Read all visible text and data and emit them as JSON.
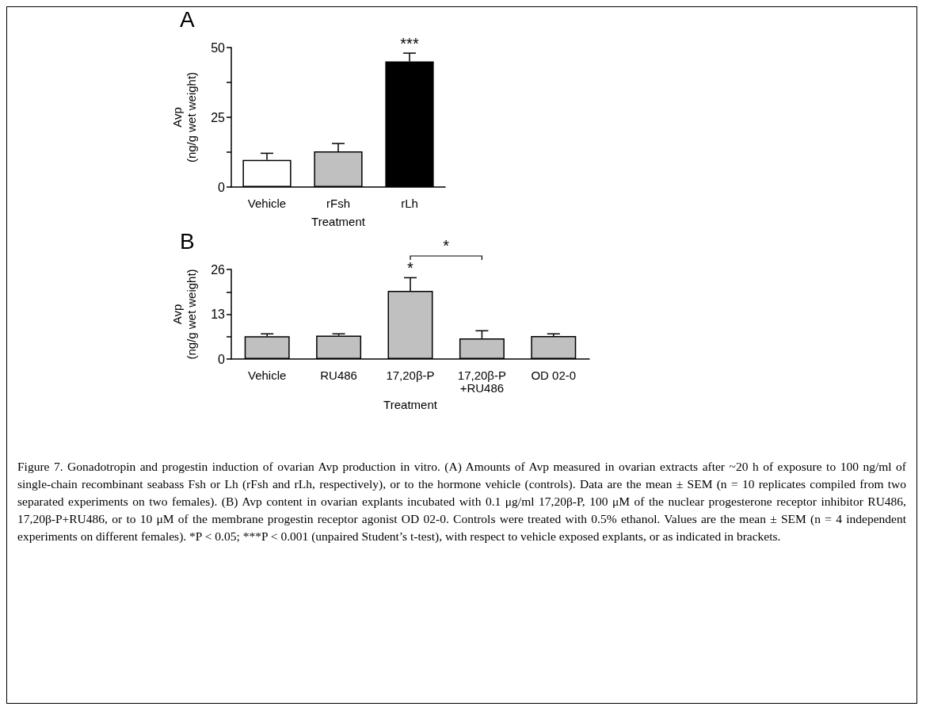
{
  "chart_data": [
    {
      "type": "bar",
      "title": "A",
      "xlabel": "Treatment",
      "ylabel": "Avp\n(ng/g wet weight)",
      "categories": [
        "Vehicle",
        "rFsh",
        "rLh"
      ],
      "values": [
        9.7,
        12.8,
        45
      ],
      "errors": [
        2.4,
        2.8,
        3
      ],
      "colors": [
        "#ffffff",
        "#c0c0c0",
        "#000000"
      ],
      "ylim": [
        0,
        50
      ],
      "yticks": [
        0,
        {
          "value": 12.5,
          "label": null
        },
        25,
        {
          "value": 37.5,
          "label": null
        },
        50
      ],
      "grid": false,
      "annotations": [
        {
          "text": "***",
          "x": "rLh",
          "y": 48
        }
      ]
    },
    {
      "type": "bar",
      "title": "B",
      "xlabel": "Treatment",
      "ylabel": "Avp\n(ng/g wet weight)",
      "categories": [
        "Vehicle",
        "RU486",
        "17,20β-P",
        "17,20β-P\n+RU486",
        "OD 02-0"
      ],
      "values": [
        6.6,
        6.8,
        19.8,
        6,
        6.7
      ],
      "errors": [
        0.7,
        0.5,
        3.8,
        2.2,
        0.6
      ],
      "color": "#c0c0c0",
      "ylim": [
        0,
        26
      ],
      "yticks": [
        0,
        {
          "value": 6.5,
          "label": null
        },
        13,
        {
          "value": 19.5,
          "label": null
        },
        26
      ],
      "grid": false,
      "annotations": [
        {
          "text": "*",
          "x": "17,20β-P",
          "y": 23.6
        },
        "*",
        "Figure 7. Gonadotropin and progestin induction of ovarian Avp production in vitro. (A) Amounts of Avp measured in ovarian extracts after ~20 h of exposure to 100 ng/ml of single-chain recombinant seabass Fsh or Lh (rFsh and rLh, respectively), or to the hormone vehicle (controls). Data are the mean ± SEM (n = 10 replicates compiled from two separated experiments on two females). (B) Avp content in ovarian explants incubated with 0.1 μg/ml 17,20β-P, 100 μM of the nuclear progesterone receptor inhibitor RU486, 17,20β-P+RU486, or to 10 μM of the membrane progestin receptor agonist OD 02-0. Controls were treated with 0.5% ethanol. Values are the mean ± SEM (n = 4 independent experiments on different females). *P < 0.05; ***P < 0.001 (unpaired Student’s t-test), with respect to vehicle exposed explants, or as indicated in brackets."
      ]
    }
  ]
}
